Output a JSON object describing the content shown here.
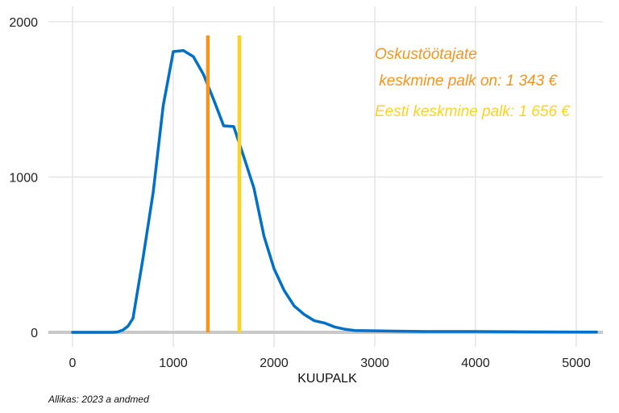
{
  "chart_data": {
    "type": "line",
    "xlabel": "KUUPALK",
    "ylabel": "",
    "xlim": [
      -230,
      5250
    ],
    "ylim": [
      0,
      2000
    ],
    "x_ticks": [
      0,
      1000,
      2000,
      3000,
      4000,
      5000
    ],
    "x_tick_labels": [
      "0",
      "1000",
      "2000",
      "3000",
      "4000",
      "5000"
    ],
    "y_ticks": [
      0,
      1000,
      2000
    ],
    "y_tick_labels": [
      "0",
      "1000",
      "2000"
    ],
    "grid": true,
    "series": [
      {
        "color": "#0070C8",
        "x": [
          0,
          100,
          200,
          300,
          400,
          450,
          500,
          550,
          600,
          700,
          800,
          900,
          1000,
          1100,
          1200,
          1300,
          1400,
          1500,
          1600,
          1700,
          1800,
          1900,
          2000,
          2100,
          2200,
          2300,
          2400,
          2500,
          2600,
          2700,
          2800,
          3000,
          3200,
          3500,
          4000,
          4500,
          5000,
          5200
        ],
        "y": [
          0,
          0,
          0,
          0,
          0,
          3,
          15,
          40,
          90,
          480,
          900,
          1460,
          1808,
          1815,
          1775,
          1660,
          1500,
          1330,
          1325,
          1130,
          930,
          620,
          410,
          270,
          170,
          115,
          75,
          60,
          35,
          20,
          12,
          10,
          8,
          5,
          5,
          3,
          2,
          2
        ]
      }
    ],
    "reference_lines": [
      {
        "x": 1343,
        "color": "#F7941D"
      },
      {
        "x": 1656,
        "color": "#FFD21F"
      }
    ],
    "annotations": [
      {
        "lines": [
          "Oskustöötajate",
          " keskmine palk on: 1 343 €"
        ],
        "color": "#F7941D"
      },
      {
        "lines": [
          "Eesti keskmine palk: 1 656 €"
        ],
        "color": "#FFD21F"
      }
    ],
    "caption": "Allikas: 2023 a andmed"
  }
}
